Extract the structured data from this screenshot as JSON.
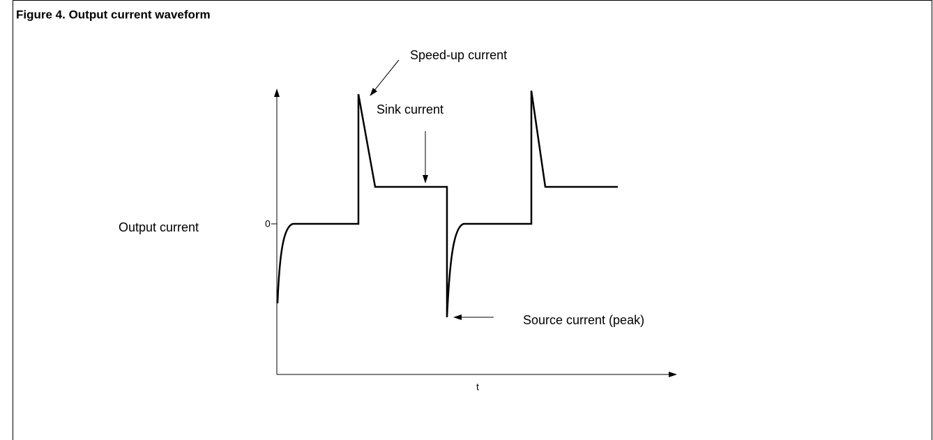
{
  "figure": {
    "title": "Figure 4. Output current waveform",
    "labels": {
      "speed_up": "Speed-up current",
      "sink": "Sink current",
      "y_axis": "Output current",
      "zero": "0",
      "x_axis": "t",
      "source": "Source current (peak)"
    }
  }
}
